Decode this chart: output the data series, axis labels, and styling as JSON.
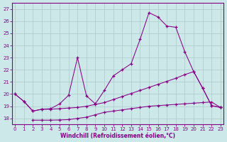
{
  "xlabel": "Windchill (Refroidissement éolien,°C)",
  "background_color": "#cce8e8",
  "grid_color": "#aacccc",
  "line_color": "#880088",
  "ylim": [
    17.5,
    27.5
  ],
  "xlim": [
    -0.3,
    23.3
  ],
  "yticks": [
    18,
    19,
    20,
    21,
    22,
    23,
    24,
    25,
    26,
    27
  ],
  "xticks": [
    0,
    1,
    2,
    3,
    4,
    5,
    6,
    7,
    8,
    9,
    10,
    11,
    12,
    13,
    14,
    15,
    16,
    17,
    18,
    19,
    20,
    21,
    22,
    23
  ],
  "curve1_x": [
    0,
    1,
    2,
    3,
    4,
    5,
    6,
    7,
    8,
    9,
    10,
    11,
    12,
    13,
    14,
    15,
    16,
    17,
    18,
    19,
    20,
    21,
    22,
    23
  ],
  "curve1_y": [
    20.0,
    19.4,
    18.6,
    18.75,
    18.75,
    18.8,
    18.85,
    18.9,
    19.0,
    19.15,
    19.3,
    19.55,
    19.8,
    20.05,
    20.3,
    20.55,
    20.8,
    21.05,
    21.3,
    21.6,
    21.85,
    20.5,
    19.05,
    18.9
  ],
  "curve2_x": [
    0,
    1,
    2,
    3,
    4,
    5,
    6,
    7,
    8,
    9,
    10,
    11,
    12,
    13,
    14,
    15,
    16,
    17,
    18,
    19,
    20,
    21,
    22,
    23
  ],
  "curve2_y": [
    20.0,
    19.4,
    18.6,
    18.75,
    18.8,
    19.2,
    19.9,
    23.0,
    19.85,
    19.2,
    20.3,
    21.5,
    22.0,
    22.5,
    24.5,
    26.7,
    26.35,
    25.6,
    25.5,
    23.5,
    21.85,
    20.5,
    19.05,
    18.9
  ],
  "curve3_x": [
    2,
    3,
    4,
    5,
    6,
    7,
    8,
    9,
    10,
    11,
    12,
    13,
    14,
    15,
    16,
    17,
    18,
    19,
    20,
    21,
    22,
    23
  ],
  "curve3_y": [
    17.85,
    17.85,
    17.85,
    17.87,
    17.9,
    18.0,
    18.1,
    18.3,
    18.5,
    18.6,
    18.7,
    18.8,
    18.9,
    19.0,
    19.05,
    19.1,
    19.15,
    19.2,
    19.25,
    19.3,
    19.35,
    18.9
  ]
}
